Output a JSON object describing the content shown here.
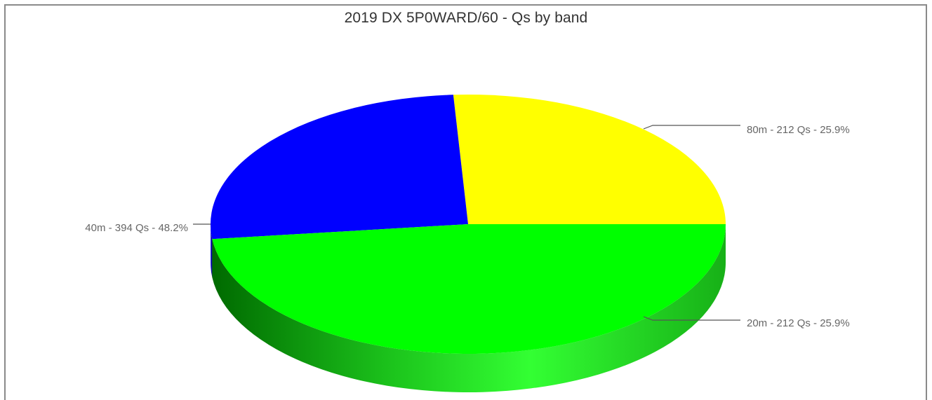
{
  "chart_data": {
    "type": "pie",
    "title": "2019 DX 5P0WARD/60 - Qs by band",
    "three_d": true,
    "slices": [
      {
        "name": "80m",
        "value": 212,
        "percent": 25.9,
        "label": "80m - 212 Qs - 25.9%",
        "color": "#ffff00",
        "side_color": "#b3b300"
      },
      {
        "name": "20m",
        "value": 212,
        "percent": 25.9,
        "label": "20m - 212 Qs - 25.9%",
        "color": "#0000ff",
        "side_color": "#000099"
      },
      {
        "name": "40m",
        "value": 394,
        "percent": 48.2,
        "label": "40m - 394 Qs - 48.2%",
        "color": "#00ff00",
        "side_color": "#00aa00"
      }
    ]
  }
}
